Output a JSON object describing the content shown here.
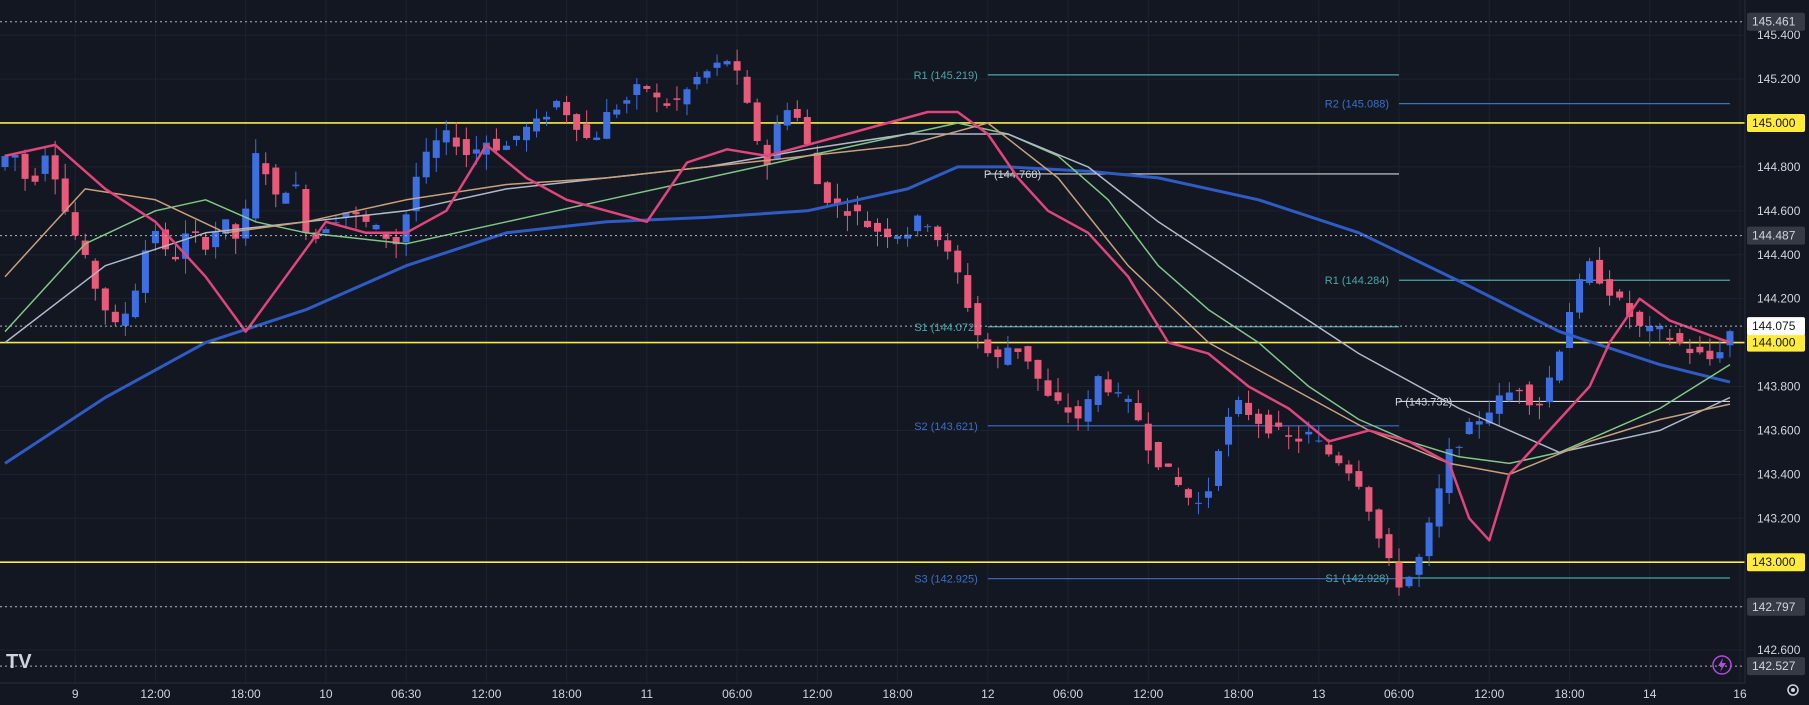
{
  "chart_data": {
    "type": "candlestick",
    "price_axis": {
      "range": [
        142.45,
        145.56
      ],
      "ticks": [
        "142.600",
        "142.800",
        "143.000",
        "143.200",
        "143.400",
        "143.600",
        "143.800",
        "144.000",
        "144.200",
        "144.400",
        "144.600",
        "144.800",
        "145.000",
        "145.200",
        "145.400"
      ]
    },
    "time_axis": {
      "ticks": [
        {
          "label": "9",
          "bar": 7
        },
        {
          "label": "12:00",
          "bar": 15
        },
        {
          "label": "18:00",
          "bar": 24
        },
        {
          "label": "10",
          "bar": 32
        },
        {
          "label": "06:30",
          "bar": 40
        },
        {
          "label": "12:00",
          "bar": 48
        },
        {
          "label": "18:00",
          "bar": 56
        },
        {
          "label": "11",
          "bar": 64
        },
        {
          "label": "06:00",
          "bar": 73
        },
        {
          "label": "12:00",
          "bar": 81
        },
        {
          "label": "18:00",
          "bar": 89
        },
        {
          "label": "12",
          "bar": 98
        },
        {
          "label": "06:00",
          "bar": 106
        },
        {
          "label": "12:00",
          "bar": 114
        },
        {
          "label": "18:00",
          "bar": 123
        },
        {
          "label": "13",
          "bar": 131
        },
        {
          "label": "06:00",
          "bar": 139
        },
        {
          "label": "12:00",
          "bar": 148
        },
        {
          "label": "18:00",
          "bar": 156
        },
        {
          "label": "14",
          "bar": 164
        },
        {
          "label": "16",
          "bar": 173
        }
      ]
    },
    "close_path": [
      144.8,
      144.88,
      144.7,
      144.9,
      144.6,
      144.4,
      144.2,
      144.05,
      144.25,
      144.55,
      144.35,
      144.5,
      144.45,
      144.55,
      144.45,
      144.9,
      144.65,
      144.75,
      144.45,
      144.55,
      144.6,
      144.55,
      144.5,
      144.45,
      144.75,
      144.9,
      144.95,
      144.85,
      144.92,
      144.88,
      144.96,
      145.0,
      145.1,
      145.02,
      144.9,
      145.05,
      145.1,
      145.18,
      145.08,
      145.1,
      145.2,
      145.25,
      145.3,
      145.05,
      144.8,
      145.1,
      145.0,
      144.7,
      144.62,
      144.6,
      144.52,
      144.5,
      144.5,
      144.58,
      144.45,
      144.3,
      144.05,
      143.9,
      144.0,
      143.92,
      143.75,
      143.7,
      143.65,
      143.85,
      143.75,
      143.7,
      143.5,
      143.4,
      143.3,
      143.25,
      143.6,
      143.72,
      143.65,
      143.6,
      143.55,
      143.58,
      143.5,
      143.45,
      143.35,
      143.1,
      142.9,
      142.95,
      143.2,
      143.5,
      143.6,
      143.68,
      143.75,
      143.8,
      143.7,
      143.9,
      144.2,
      144.35,
      144.25,
      144.15,
      144.05,
      144.05,
      144.0,
      143.95,
      143.92,
      144.05
    ],
    "support_resistance": [
      {
        "price": 145.0,
        "label": "145.000",
        "color": "#ffeb3b"
      },
      {
        "price": 144.0,
        "label": "144.000",
        "color": "#ffeb3b"
      },
      {
        "price": 143.0,
        "label": "143.000",
        "color": "#ffeb3b"
      }
    ],
    "dotted_levels": [
      {
        "price": 145.461,
        "label": "145.461"
      },
      {
        "price": 144.487,
        "label": "144.487"
      },
      {
        "price": 144.075,
        "label": "144.075",
        "current": true
      },
      {
        "price": 142.797,
        "label": "142.797"
      },
      {
        "price": 142.527,
        "label": "142.527"
      }
    ],
    "pivot_levels": [
      {
        "label": "R1 (145.219)",
        "price": 145.219,
        "from_bar": 98,
        "to_bar": 139,
        "color": "#4ba6a8",
        "label_side": "left"
      },
      {
        "label": "R2 (145.088)",
        "price": 145.088,
        "from_bar": 139,
        "to_bar": 172,
        "color": "#3d6fc4",
        "label_side": "left"
      },
      {
        "label": "P (144.768)",
        "price": 144.768,
        "from_bar": 98,
        "to_bar": 139,
        "color": "#d1d4dc",
        "label_side": "inline"
      },
      {
        "label": "R1 (144.284)",
        "price": 144.284,
        "from_bar": 139,
        "to_bar": 172,
        "color": "#4ba6a8",
        "label_side": "left"
      },
      {
        "label": "S1 (144.072)",
        "price": 144.072,
        "from_bar": 98,
        "to_bar": 139,
        "color": "#4ba6a8",
        "label_side": "left"
      },
      {
        "label": "P (143.732)",
        "price": 143.732,
        "from_bar": 139,
        "to_bar": 172,
        "color": "#d1d4dc",
        "label_side": "inline"
      },
      {
        "label": "S2 (143.621)",
        "price": 143.621,
        "from_bar": 98,
        "to_bar": 139,
        "color": "#3d6fc4",
        "label_side": "left"
      },
      {
        "label": "S3 (142.925)",
        "price": 142.925,
        "from_bar": 98,
        "to_bar": 139,
        "color": "#3d6fc4",
        "label_side": "left"
      },
      {
        "label": "S1 (142.928)",
        "price": 142.928,
        "from_bar": 139,
        "to_bar": 172,
        "color": "#4ba6a8",
        "label_side": "left"
      }
    ],
    "moving_averages": [
      {
        "color": "#2e5cc4",
        "points": [
          [
            0,
            143.45
          ],
          [
            10,
            143.75
          ],
          [
            20,
            144.0
          ],
          [
            30,
            144.15
          ],
          [
            40,
            144.35
          ],
          [
            50,
            144.5
          ],
          [
            60,
            144.55
          ],
          [
            70,
            144.57
          ],
          [
            80,
            144.6
          ],
          [
            90,
            144.7
          ],
          [
            95,
            144.8
          ],
          [
            100,
            144.8
          ],
          [
            108,
            144.78
          ],
          [
            115,
            144.75
          ],
          [
            125,
            144.65
          ],
          [
            135,
            144.5
          ],
          [
            145,
            144.28
          ],
          [
            155,
            144.05
          ],
          [
            165,
            143.9
          ],
          [
            172,
            143.82
          ]
        ]
      },
      {
        "color": "#81c784",
        "points": [
          [
            0,
            144.05
          ],
          [
            8,
            144.45
          ],
          [
            15,
            144.6
          ],
          [
            20,
            144.65
          ],
          [
            25,
            144.55
          ],
          [
            30,
            144.5
          ],
          [
            40,
            144.45
          ],
          [
            50,
            144.55
          ],
          [
            60,
            144.65
          ],
          [
            70,
            144.75
          ],
          [
            80,
            144.85
          ],
          [
            90,
            144.95
          ],
          [
            95,
            145.0
          ],
          [
            100,
            144.95
          ],
          [
            105,
            144.85
          ],
          [
            110,
            144.65
          ],
          [
            115,
            144.35
          ],
          [
            120,
            144.15
          ],
          [
            125,
            144.0
          ],
          [
            130,
            143.8
          ],
          [
            135,
            143.65
          ],
          [
            140,
            143.55
          ],
          [
            145,
            143.48
          ],
          [
            150,
            143.45
          ],
          [
            155,
            143.5
          ],
          [
            160,
            143.6
          ],
          [
            165,
            143.7
          ],
          [
            172,
            143.9
          ]
        ]
      },
      {
        "color": "#b0b8c8",
        "points": [
          [
            0,
            144.0
          ],
          [
            10,
            144.35
          ],
          [
            20,
            144.5
          ],
          [
            30,
            144.55
          ],
          [
            40,
            144.6
          ],
          [
            50,
            144.7
          ],
          [
            60,
            144.75
          ],
          [
            70,
            144.8
          ],
          [
            80,
            144.88
          ],
          [
            90,
            144.95
          ],
          [
            100,
            144.95
          ],
          [
            108,
            144.8
          ],
          [
            115,
            144.55
          ],
          [
            125,
            144.25
          ],
          [
            135,
            143.95
          ],
          [
            145,
            143.7
          ],
          [
            155,
            143.5
          ],
          [
            165,
            143.6
          ],
          [
            172,
            143.75
          ]
        ]
      },
      {
        "color": "#c8a07a",
        "points": [
          [
            0,
            144.3
          ],
          [
            8,
            144.7
          ],
          [
            15,
            144.65
          ],
          [
            22,
            144.5
          ],
          [
            30,
            144.55
          ],
          [
            40,
            144.65
          ],
          [
            50,
            144.72
          ],
          [
            60,
            144.75
          ],
          [
            70,
            144.8
          ],
          [
            80,
            144.85
          ],
          [
            90,
            144.9
          ],
          [
            98,
            145.0
          ],
          [
            105,
            144.75
          ],
          [
            112,
            144.35
          ],
          [
            120,
            144.0
          ],
          [
            128,
            143.8
          ],
          [
            136,
            143.6
          ],
          [
            144,
            143.45
          ],
          [
            150,
            143.4
          ],
          [
            158,
            143.55
          ],
          [
            165,
            143.65
          ],
          [
            172,
            143.72
          ]
        ]
      },
      {
        "color": "#e0457b",
        "points": [
          [
            0,
            144.85
          ],
          [
            5,
            144.9
          ],
          [
            10,
            144.7
          ],
          [
            15,
            144.55
          ],
          [
            20,
            144.3
          ],
          [
            24,
            144.05
          ],
          [
            28,
            144.3
          ],
          [
            32,
            144.55
          ],
          [
            36,
            144.5
          ],
          [
            40,
            144.5
          ],
          [
            44,
            144.6
          ],
          [
            48,
            144.9
          ],
          [
            52,
            144.75
          ],
          [
            56,
            144.65
          ],
          [
            60,
            144.6
          ],
          [
            64,
            144.55
          ],
          [
            68,
            144.82
          ],
          [
            72,
            144.88
          ],
          [
            76,
            144.85
          ],
          [
            80,
            144.9
          ],
          [
            84,
            144.95
          ],
          [
            88,
            145.0
          ],
          [
            92,
            145.05
          ],
          [
            95,
            145.05
          ],
          [
            98,
            144.95
          ],
          [
            101,
            144.75
          ],
          [
            104,
            144.6
          ],
          [
            108,
            144.5
          ],
          [
            112,
            144.3
          ],
          [
            116,
            144.0
          ],
          [
            120,
            143.95
          ],
          [
            124,
            143.8
          ],
          [
            128,
            143.7
          ],
          [
            132,
            143.55
          ],
          [
            136,
            143.6
          ],
          [
            140,
            143.55
          ],
          [
            144,
            143.45
          ],
          [
            146,
            143.2
          ],
          [
            148,
            143.1
          ],
          [
            150,
            143.4
          ],
          [
            154,
            143.6
          ],
          [
            158,
            143.8
          ],
          [
            160,
            144.0
          ],
          [
            163,
            144.2
          ],
          [
            166,
            144.1
          ],
          [
            169,
            144.05
          ],
          [
            172,
            144.0
          ]
        ]
      }
    ],
    "current_price": 144.075
  }
}
